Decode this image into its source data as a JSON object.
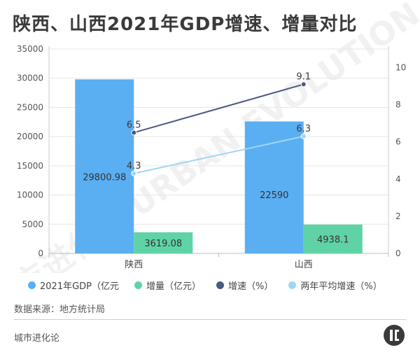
{
  "title": "陕西、山西2021年GDP增速、增量对比",
  "chart_data": {
    "type": "bar",
    "categories": [
      "陕西",
      "山西"
    ],
    "series": [
      {
        "name": "2021年GDP（亿元",
        "kind": "bar",
        "axis": "left",
        "color": "#5aaef2",
        "values": [
          29800.98,
          22590
        ],
        "labels": [
          "29800.98",
          "22590"
        ]
      },
      {
        "name": "增量（亿元）",
        "kind": "bar",
        "axis": "left",
        "color": "#5fd3a5",
        "values": [
          3619.08,
          4938.1
        ],
        "labels": [
          "3619.08",
          "4938.1"
        ]
      },
      {
        "name": "增速（%）",
        "kind": "line",
        "axis": "right",
        "color": "#4a5a80",
        "values": [
          6.5,
          9.1
        ],
        "labels": [
          "6.5",
          "9.1"
        ]
      },
      {
        "name": "两年平均增速（%）",
        "kind": "line",
        "axis": "right",
        "color": "#9fd6f2",
        "values": [
          4.3,
          6.3
        ],
        "labels": [
          "4.3",
          "6.3"
        ]
      }
    ],
    "left_axis": {
      "min": 0,
      "max": 35000,
      "ticks": [
        "0",
        "5000",
        "10000",
        "15000",
        "20000",
        "25000",
        "30000",
        "35000"
      ]
    },
    "right_axis": {
      "min": 0,
      "max": 11,
      "ticks": [
        "0",
        "2",
        "4",
        "6",
        "8",
        "10"
      ]
    },
    "grid": true,
    "legend_position": "bottom"
  },
  "source": "数据来源：地方统计局",
  "brand": "城市进化论",
  "watermark": "城市进化论 URBAN EVOLUTION"
}
